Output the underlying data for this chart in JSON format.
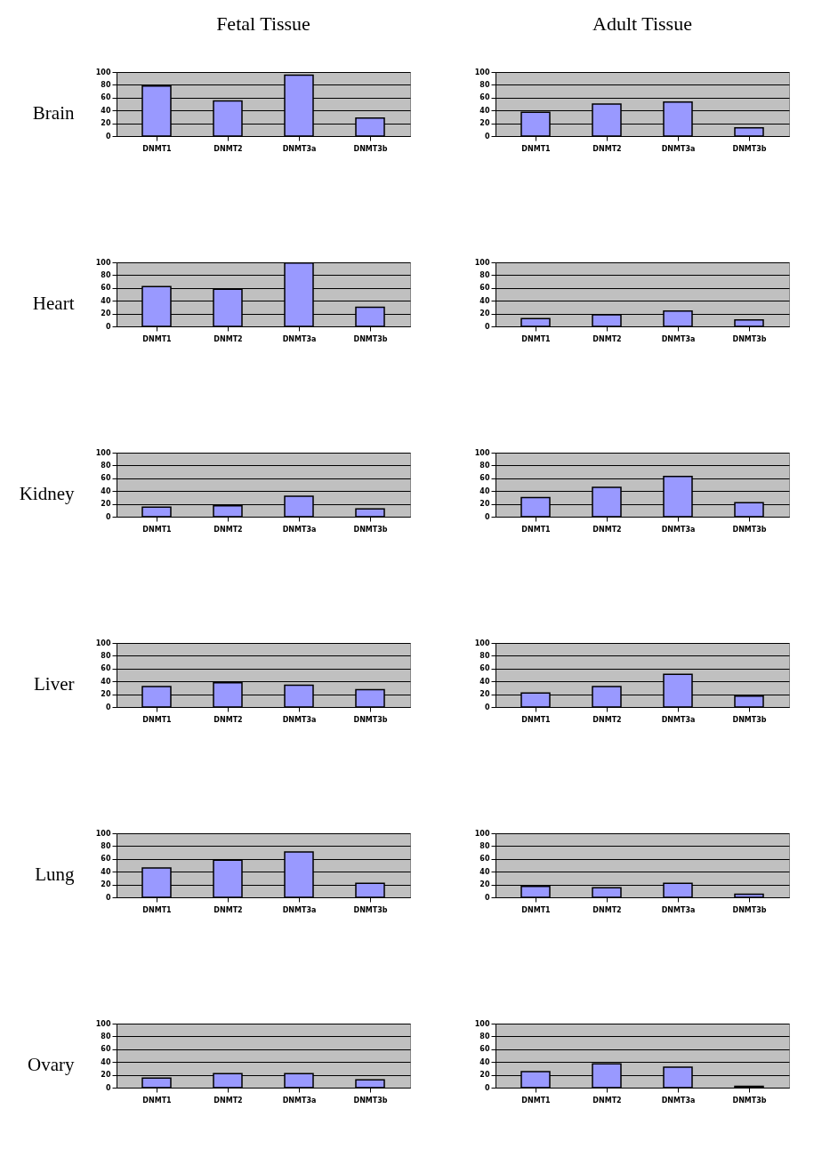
{
  "chart_data": [
    {
      "type": "bar",
      "title": "Fetal Tissue",
      "ylabel": "Brain",
      "categories": [
        "DNMT1",
        "DNMT2",
        "DNMT3a",
        "DNMT3b"
      ],
      "values": [
        78,
        55,
        95,
        28
      ],
      "color": "#9999ff",
      "ylim": [
        0,
        100
      ],
      "yticks": [
        0,
        20,
        40,
        60,
        80,
        100
      ],
      "grid": "y"
    },
    {
      "type": "bar",
      "title": "Adult Tissue",
      "categories": [
        "DNMT1",
        "DNMT2",
        "DNMT3a",
        "DNMT3b"
      ],
      "values": [
        37,
        50,
        53,
        13
      ],
      "color": "#9999ff",
      "ylim": [
        0,
        100
      ],
      "yticks": [
        0,
        20,
        40,
        60,
        80,
        100
      ],
      "grid": "y"
    },
    {
      "type": "bar",
      "ylabel": "Heart",
      "categories": [
        "DNMT1",
        "DNMT2",
        "DNMT3a",
        "DNMT3b"
      ],
      "values": [
        62,
        58,
        99,
        30
      ],
      "color": "#9999ff",
      "ylim": [
        0,
        100
      ],
      "yticks": [
        0,
        20,
        40,
        60,
        80,
        100
      ],
      "grid": "y"
    },
    {
      "type": "bar",
      "categories": [
        "DNMT1",
        "DNMT2",
        "DNMT3a",
        "DNMT3b"
      ],
      "values": [
        12,
        18,
        24,
        10
      ],
      "color": "#9999ff",
      "ylim": [
        0,
        100
      ],
      "yticks": [
        0,
        20,
        40,
        60,
        80,
        100
      ],
      "grid": "y"
    },
    {
      "type": "bar",
      "ylabel": "Kidney",
      "categories": [
        "DNMT1",
        "DNMT2",
        "DNMT3a",
        "DNMT3b"
      ],
      "values": [
        15,
        17,
        32,
        12
      ],
      "color": "#9999ff",
      "ylim": [
        0,
        100
      ],
      "yticks": [
        0,
        20,
        40,
        60,
        80,
        100
      ],
      "grid": "y"
    },
    {
      "type": "bar",
      "categories": [
        "DNMT1",
        "DNMT2",
        "DNMT3a",
        "DNMT3b"
      ],
      "values": [
        30,
        46,
        63,
        22
      ],
      "color": "#9999ff",
      "ylim": [
        0,
        100
      ],
      "yticks": [
        0,
        20,
        40,
        60,
        80,
        100
      ],
      "grid": "y"
    },
    {
      "type": "bar",
      "ylabel": "Liver",
      "categories": [
        "DNMT1",
        "DNMT2",
        "DNMT3a",
        "DNMT3b"
      ],
      "values": [
        32,
        38,
        34,
        27
      ],
      "color": "#9999ff",
      "ylim": [
        0,
        100
      ],
      "yticks": [
        0,
        20,
        40,
        60,
        80,
        100
      ],
      "grid": "y"
    },
    {
      "type": "bar",
      "categories": [
        "DNMT1",
        "DNMT2",
        "DNMT3a",
        "DNMT3b"
      ],
      "values": [
        22,
        32,
        51,
        17
      ],
      "color": "#9999ff",
      "ylim": [
        0,
        100
      ],
      "yticks": [
        0,
        20,
        40,
        60,
        80,
        100
      ],
      "grid": "y"
    },
    {
      "type": "bar",
      "ylabel": "Lung",
      "categories": [
        "DNMT1",
        "DNMT2",
        "DNMT3a",
        "DNMT3b"
      ],
      "values": [
        46,
        58,
        71,
        22
      ],
      "color": "#9999ff",
      "ylim": [
        0,
        100
      ],
      "yticks": [
        0,
        20,
        40,
        60,
        80,
        100
      ],
      "grid": "y"
    },
    {
      "type": "bar",
      "categories": [
        "DNMT1",
        "DNMT2",
        "DNMT3a",
        "DNMT3b"
      ],
      "values": [
        17,
        15,
        22,
        5
      ],
      "color": "#9999ff",
      "ylim": [
        0,
        100
      ],
      "yticks": [
        0,
        20,
        40,
        60,
        80,
        100
      ],
      "grid": "y"
    },
    {
      "type": "bar",
      "ylabel": "Ovary",
      "categories": [
        "DNMT1",
        "DNMT2",
        "DNMT3a",
        "DNMT3b"
      ],
      "values": [
        15,
        22,
        22,
        12
      ],
      "color": "#9999ff",
      "ylim": [
        0,
        100
      ],
      "yticks": [
        0,
        20,
        40,
        60,
        80,
        100
      ],
      "grid": "y"
    },
    {
      "type": "bar",
      "categories": [
        "DNMT1",
        "DNMT2",
        "DNMT3a",
        "DNMT3b"
      ],
      "values": [
        25,
        37,
        32,
        2
      ],
      "color": "#9999ff",
      "ylim": [
        0,
        100
      ],
      "yticks": [
        0,
        20,
        40,
        60,
        80,
        100
      ],
      "grid": "y"
    }
  ]
}
